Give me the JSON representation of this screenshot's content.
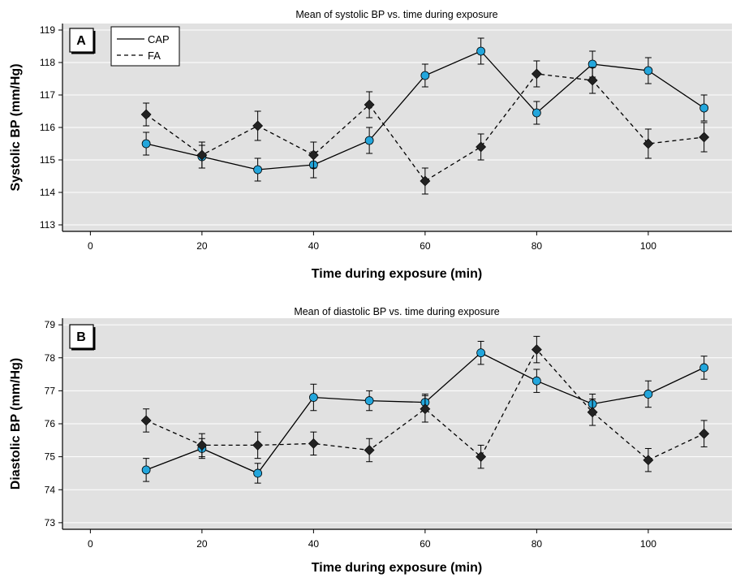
{
  "chart_data": [
    {
      "type": "line",
      "panel_label": "A",
      "title": "Mean of systolic BP vs. time during exposure",
      "xlabel": "Time during exposure (min)",
      "ylabel": "Systolic BP (mm/Hg)",
      "xlim": [
        -5,
        115
      ],
      "ylim": [
        112.8,
        119.2
      ],
      "xticks": [
        0,
        20,
        40,
        60,
        80,
        100
      ],
      "yticks": [
        113,
        114,
        115,
        116,
        117,
        118,
        119
      ],
      "grid": true,
      "legend": "top-left",
      "x": [
        10,
        20,
        30,
        40,
        50,
        60,
        70,
        80,
        90,
        100,
        110
      ],
      "series": [
        {
          "name": "CAP",
          "style": "solid",
          "marker": "circle",
          "color": "#23a6dc",
          "values": [
            115.5,
            115.1,
            114.7,
            114.85,
            115.6,
            117.6,
            118.35,
            116.45,
            117.95,
            117.75,
            116.6
          ],
          "error": [
            0.35,
            0.35,
            0.35,
            0.4,
            0.4,
            0.35,
            0.4,
            0.35,
            0.4,
            0.4,
            0.4
          ]
        },
        {
          "name": "FA",
          "style": "dashed",
          "marker": "diamond",
          "color": "#222222",
          "values": [
            116.4,
            115.15,
            116.05,
            115.15,
            116.7,
            114.35,
            115.4,
            117.65,
            117.45,
            115.5,
            115.7
          ],
          "error": [
            0.35,
            0.4,
            0.45,
            0.4,
            0.4,
            0.4,
            0.4,
            0.4,
            0.4,
            0.45,
            0.45
          ]
        }
      ]
    },
    {
      "type": "line",
      "panel_label": "B",
      "title": "Mean of diastolic BP vs. time during exposure",
      "xlabel": "Time during exposure (min)",
      "ylabel": "Diastolic BP (mm/Hg)",
      "xlim": [
        -5,
        115
      ],
      "ylim": [
        72.8,
        79.2
      ],
      "xticks": [
        0,
        20,
        40,
        60,
        80,
        100
      ],
      "yticks": [
        73,
        74,
        75,
        76,
        77,
        78,
        79
      ],
      "grid": true,
      "x": [
        10,
        20,
        30,
        40,
        50,
        60,
        70,
        80,
        90,
        100,
        110
      ],
      "series": [
        {
          "name": "CAP",
          "style": "solid",
          "marker": "circle",
          "color": "#23a6dc",
          "values": [
            74.6,
            75.25,
            74.5,
            76.8,
            76.7,
            76.65,
            78.15,
            77.3,
            76.6,
            76.9,
            77.7
          ],
          "error": [
            0.35,
            0.3,
            0.3,
            0.4,
            0.3,
            0.25,
            0.35,
            0.35,
            0.3,
            0.4,
            0.35
          ]
        },
        {
          "name": "FA",
          "style": "dashed",
          "marker": "diamond",
          "color": "#222222",
          "values": [
            76.1,
            75.35,
            75.35,
            75.4,
            75.2,
            76.45,
            75.0,
            78.25,
            76.35,
            74.9,
            75.7
          ],
          "error": [
            0.35,
            0.35,
            0.4,
            0.35,
            0.35,
            0.4,
            0.35,
            0.4,
            0.4,
            0.35,
            0.4
          ]
        }
      ]
    }
  ]
}
